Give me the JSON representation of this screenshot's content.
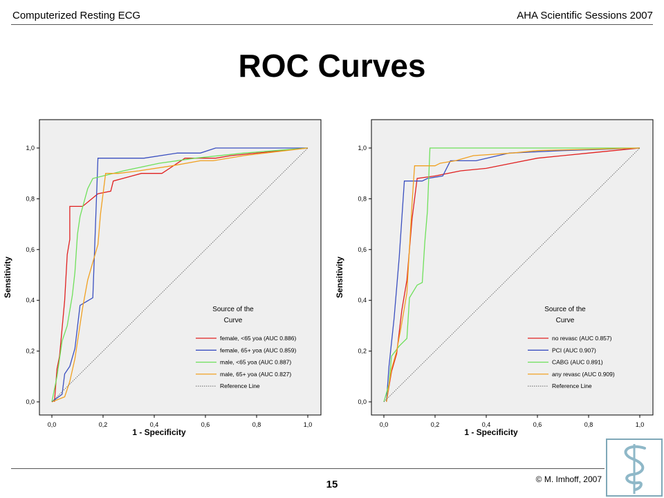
{
  "header": {
    "left": "Computerized Resting ECG",
    "right": "AHA Scientific Sessions 2007"
  },
  "title": "ROC Curves",
  "footer": {
    "page": "15",
    "copyright": "© M. Imhoff, 2007"
  },
  "chart_data": [
    {
      "type": "line",
      "xlabel": "1 - Specificity",
      "ylabel": "Sensitivity",
      "xlim": [
        0,
        1
      ],
      "ylim": [
        0,
        1
      ],
      "x_ticks": [
        "0,0",
        "0,2",
        "0,4",
        "0,6",
        "0,8",
        "1,0"
      ],
      "y_ticks": [
        "0,0",
        "0,2",
        "0,4",
        "0,6",
        "0,8",
        "1,0"
      ],
      "background": "#efefef",
      "grid": false,
      "legend_title": "Source of the Curve",
      "legend_position": "bottom-right",
      "series": [
        {
          "name": "female, <65 yoa (AUC 0.886)",
          "color": "#e02020",
          "points": [
            [
              0.01,
              0.0
            ],
            [
              0.02,
              0.13
            ],
            [
              0.03,
              0.18
            ],
            [
              0.05,
              0.4
            ],
            [
              0.06,
              0.58
            ],
            [
              0.07,
              0.64
            ],
            [
              0.07,
              0.77
            ],
            [
              0.12,
              0.77
            ],
            [
              0.18,
              0.82
            ],
            [
              0.23,
              0.83
            ],
            [
              0.24,
              0.87
            ],
            [
              0.35,
              0.9
            ],
            [
              0.43,
              0.9
            ],
            [
              0.52,
              0.96
            ],
            [
              0.64,
              0.96
            ],
            [
              0.7,
              0.97
            ],
            [
              1.0,
              1.0
            ]
          ]
        },
        {
          "name": "female, 65+ yoa (AUC 0.859)",
          "color": "#3a4fc0",
          "points": [
            [
              0.0,
              0.0
            ],
            [
              0.04,
              0.03
            ],
            [
              0.05,
              0.11
            ],
            [
              0.07,
              0.14
            ],
            [
              0.09,
              0.21
            ],
            [
              0.11,
              0.38
            ],
            [
              0.16,
              0.41
            ],
            [
              0.18,
              0.96
            ],
            [
              0.36,
              0.96
            ],
            [
              0.49,
              0.98
            ],
            [
              0.58,
              0.98
            ],
            [
              0.64,
              1.0
            ],
            [
              1.0,
              1.0
            ]
          ]
        },
        {
          "name": "male, <65 yoa (AUC 0.887)",
          "color": "#6ee05a",
          "points": [
            [
              0.0,
              0.0
            ],
            [
              0.02,
              0.1
            ],
            [
              0.04,
              0.24
            ],
            [
              0.06,
              0.3
            ],
            [
              0.08,
              0.42
            ],
            [
              0.09,
              0.51
            ],
            [
              0.1,
              0.66
            ],
            [
              0.11,
              0.73
            ],
            [
              0.14,
              0.84
            ],
            [
              0.16,
              0.88
            ],
            [
              0.2,
              0.89
            ],
            [
              0.28,
              0.91
            ],
            [
              0.42,
              0.94
            ],
            [
              0.56,
              0.96
            ],
            [
              0.75,
              0.98
            ],
            [
              1.0,
              1.0
            ]
          ]
        },
        {
          "name": "male, 65+ yoa (AUC 0.827)",
          "color": "#f0a020",
          "points": [
            [
              0.0,
              0.0
            ],
            [
              0.05,
              0.02
            ],
            [
              0.07,
              0.08
            ],
            [
              0.09,
              0.17
            ],
            [
              0.12,
              0.37
            ],
            [
              0.14,
              0.48
            ],
            [
              0.18,
              0.62
            ],
            [
              0.19,
              0.74
            ],
            [
              0.21,
              0.9
            ],
            [
              0.26,
              0.9
            ],
            [
              0.34,
              0.91
            ],
            [
              0.47,
              0.93
            ],
            [
              0.58,
              0.95
            ],
            [
              0.63,
              0.95
            ],
            [
              0.75,
              0.97
            ],
            [
              1.0,
              1.0
            ]
          ]
        },
        {
          "name": "Reference Line",
          "color": "#555555",
          "dashed": true,
          "points": [
            [
              0.0,
              0.0
            ],
            [
              1.0,
              1.0
            ]
          ]
        }
      ]
    },
    {
      "type": "line",
      "xlabel": "1 - Specificity",
      "ylabel": "Sensitivity",
      "xlim": [
        0,
        1
      ],
      "ylim": [
        0,
        1
      ],
      "x_ticks": [
        "0,0",
        "0,2",
        "0,4",
        "0,6",
        "0,8",
        "1,0"
      ],
      "y_ticks": [
        "0,0",
        "0,2",
        "0,4",
        "0,6",
        "0,8",
        "1,0"
      ],
      "background": "#efefef",
      "grid": false,
      "legend_title": "Source of the Curve",
      "legend_position": "bottom-right",
      "series": [
        {
          "name": "no revasc (AUC 0.857)",
          "color": "#e02020",
          "points": [
            [
              0.01,
              0.0
            ],
            [
              0.03,
              0.12
            ],
            [
              0.05,
              0.19
            ],
            [
              0.07,
              0.36
            ],
            [
              0.09,
              0.48
            ],
            [
              0.11,
              0.72
            ],
            [
              0.13,
              0.88
            ],
            [
              0.2,
              0.89
            ],
            [
              0.3,
              0.91
            ],
            [
              0.4,
              0.92
            ],
            [
              0.5,
              0.94
            ],
            [
              0.6,
              0.96
            ],
            [
              0.7,
              0.97
            ],
            [
              0.8,
              0.98
            ],
            [
              1.0,
              1.0
            ]
          ]
        },
        {
          "name": "PCI (AUC 0.907)",
          "color": "#3a4fc0",
          "points": [
            [
              0.01,
              0.0
            ],
            [
              0.02,
              0.14
            ],
            [
              0.04,
              0.33
            ],
            [
              0.06,
              0.57
            ],
            [
              0.08,
              0.87
            ],
            [
              0.15,
              0.87
            ],
            [
              0.17,
              0.88
            ],
            [
              0.23,
              0.89
            ],
            [
              0.26,
              0.95
            ],
            [
              0.36,
              0.95
            ],
            [
              0.49,
              0.98
            ],
            [
              0.7,
              0.99
            ],
            [
              1.0,
              1.0
            ]
          ]
        },
        {
          "name": "CABG (AUC 0.891)",
          "color": "#6ee05a",
          "points": [
            [
              0.0,
              0.0
            ],
            [
              0.02,
              0.07
            ],
            [
              0.03,
              0.18
            ],
            [
              0.06,
              0.22
            ],
            [
              0.09,
              0.25
            ],
            [
              0.1,
              0.41
            ],
            [
              0.13,
              0.46
            ],
            [
              0.15,
              0.47
            ],
            [
              0.16,
              0.63
            ],
            [
              0.17,
              0.75
            ],
            [
              0.18,
              1.0
            ],
            [
              1.0,
              1.0
            ]
          ]
        },
        {
          "name": "any revasc (AUC 0.909)",
          "color": "#f0a020",
          "points": [
            [
              0.01,
              0.0
            ],
            [
              0.03,
              0.13
            ],
            [
              0.05,
              0.2
            ],
            [
              0.07,
              0.31
            ],
            [
              0.09,
              0.43
            ],
            [
              0.11,
              0.78
            ],
            [
              0.12,
              0.93
            ],
            [
              0.2,
              0.93
            ],
            [
              0.22,
              0.94
            ],
            [
              0.28,
              0.95
            ],
            [
              0.35,
              0.97
            ],
            [
              0.5,
              0.98
            ],
            [
              0.6,
              0.99
            ],
            [
              1.0,
              1.0
            ]
          ]
        },
        {
          "name": "Reference Line",
          "color": "#555555",
          "dashed": true,
          "points": [
            [
              0.0,
              0.0
            ],
            [
              1.0,
              1.0
            ]
          ]
        }
      ]
    }
  ]
}
